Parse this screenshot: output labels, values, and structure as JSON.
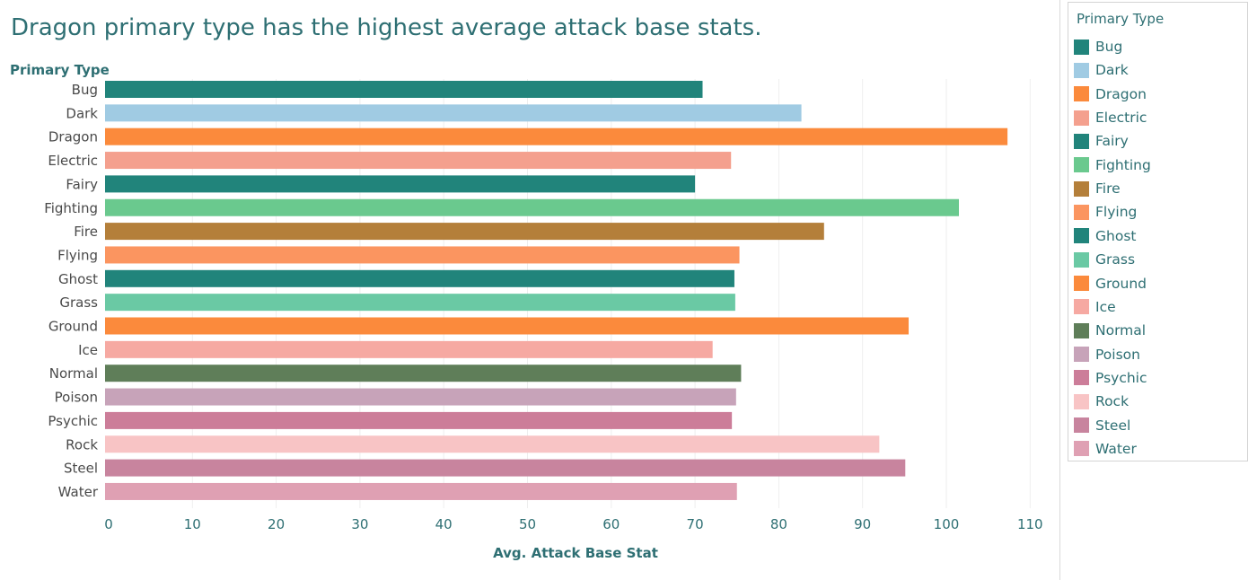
{
  "chart_data": {
    "type": "bar",
    "orientation": "horizontal",
    "title": "Dragon primary type has the highest average attack base stats.",
    "ylabel": "Primary Type",
    "xlabel": "Avg. Attack Base Stat",
    "xlim": [
      0,
      110
    ],
    "xticks": [
      0,
      10,
      20,
      30,
      40,
      50,
      60,
      70,
      80,
      90,
      100,
      110
    ],
    "grid": true,
    "legend_title": "Primary Type",
    "legend_position": "right",
    "categories": [
      "Bug",
      "Dark",
      "Dragon",
      "Electric",
      "Fairy",
      "Fighting",
      "Fire",
      "Flying",
      "Ghost",
      "Grass",
      "Ground",
      "Ice",
      "Normal",
      "Poison",
      "Psychic",
      "Rock",
      "Steel",
      "Water"
    ],
    "values": [
      70.9,
      82.7,
      107.3,
      74.3,
      70.0,
      101.5,
      85.4,
      75.3,
      74.7,
      74.8,
      95.5,
      72.1,
      75.5,
      74.9,
      74.4,
      92.0,
      95.1,
      75.0
    ],
    "colors": [
      "#21847b",
      "#a0cbe3",
      "#fb8a3c",
      "#f4a08e",
      "#21847b",
      "#6ac98e",
      "#b47f3a",
      "#fb9560",
      "#21847b",
      "#6ac9a4",
      "#fb8a3c",
      "#f6a9a2",
      "#5f7e59",
      "#c7a3b9",
      "#cc7d99",
      "#f8c4c5",
      "#c8849e",
      "#dfa0b3"
    ]
  }
}
